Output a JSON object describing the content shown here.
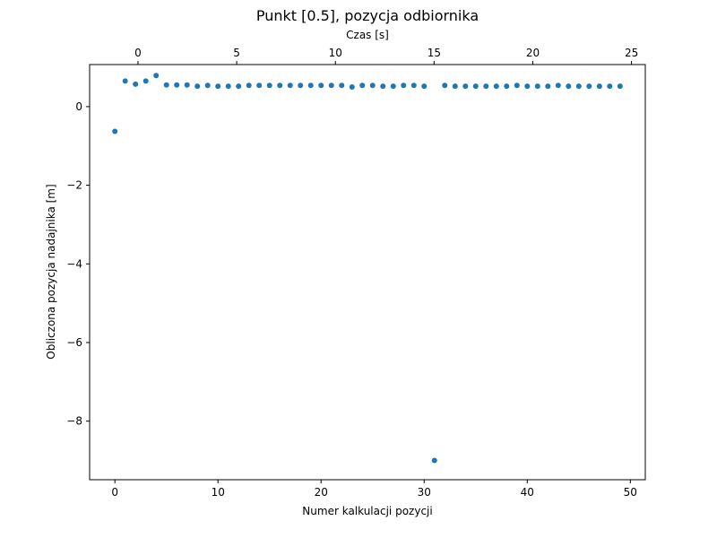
{
  "chart_data": {
    "type": "scatter",
    "title": "Punkt [0.5], pozycja odbiornika",
    "xlabel": "Numer kalkulacji pozycji",
    "ylabel": "Obliczona pozycja nadajnika [m]",
    "x2label": "Czas [s]",
    "xlim": [
      -2.45,
      51.45
    ],
    "ylim": [
      -9.49,
      1.07
    ],
    "x2lim": [
      -2.45,
      25.7
    ],
    "xticks": [
      0,
      10,
      20,
      30,
      40,
      50
    ],
    "x2ticks": [
      0,
      5,
      10,
      15,
      20,
      25
    ],
    "yticks": [
      0,
      -2,
      -4,
      -6,
      -8
    ],
    "grid": false,
    "legend": "none",
    "marker_color": "#1f77b4",
    "series": [
      {
        "x": [
          0,
          1,
          2,
          3,
          4,
          5,
          6,
          7,
          8,
          9,
          10,
          11,
          12,
          13,
          14,
          15,
          16,
          17,
          18,
          19,
          20,
          21,
          22,
          23,
          24,
          25,
          26,
          27,
          28,
          29,
          30,
          31,
          32,
          33,
          34,
          35,
          36,
          37,
          38,
          39,
          40,
          41,
          42,
          43,
          44,
          45,
          46,
          47,
          48,
          49
        ],
        "y": [
          -0.63,
          0.65,
          0.57,
          0.65,
          0.79,
          0.55,
          0.55,
          0.55,
          0.52,
          0.54,
          0.52,
          0.52,
          0.52,
          0.54,
          0.54,
          0.54,
          0.54,
          0.54,
          0.54,
          0.54,
          0.54,
          0.54,
          0.54,
          0.5,
          0.54,
          0.54,
          0.52,
          0.52,
          0.54,
          0.54,
          0.52,
          -9.0,
          0.54,
          0.52,
          0.52,
          0.52,
          0.52,
          0.52,
          0.52,
          0.54,
          0.52,
          0.52,
          0.52,
          0.54,
          0.52,
          0.52,
          0.52,
          0.52,
          0.52,
          0.52
        ]
      }
    ]
  }
}
